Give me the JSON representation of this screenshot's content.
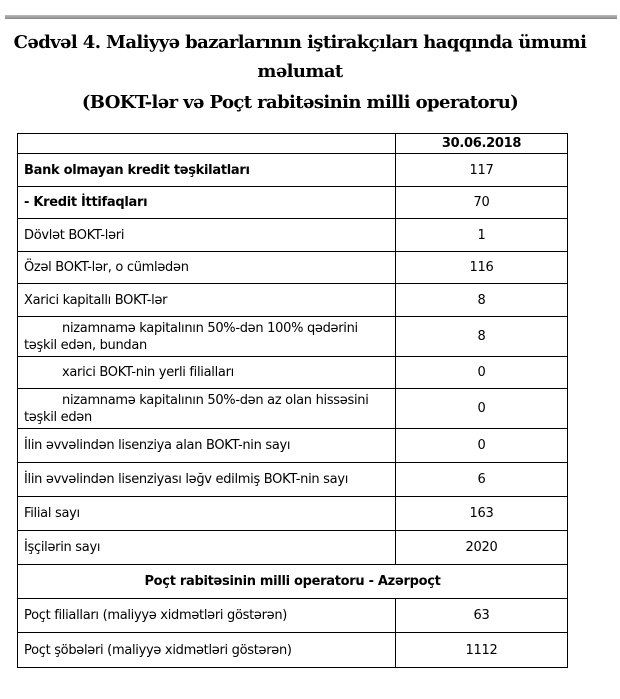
{
  "title": "Cədvəl 4. Maliyyə bazarlarının iştirakçıları haqqında ümumi məlumat",
  "subtitle": "(BOKT-lər və Poçt rabitəsinin milli operatoru)",
  "table": {
    "header": [
      "",
      "30.06.2018"
    ],
    "rows": [
      {
        "label": "Bank olmayan kredit təşkilatları",
        "value": "117"
      },
      {
        "label": " - Kredit İttifaqları",
        "value": "70"
      },
      {
        "label": "Dövlət BOKT-ləri",
        "value": "1"
      },
      {
        "label": "Özəl BOKT-lər, o cümlədən",
        "value": "116"
      },
      {
        "label": "Xarici kapitallı BOKT-lər",
        "value": "8"
      },
      {
        "label": "nizamnamə kapitalının 50%-dən 100% qədərini təşkil edən, bundan",
        "value": "8"
      },
      {
        "label": "xarici BOKT-nin yerli filialları",
        "value": "0"
      },
      {
        "label": "nizamnamə kapitalının 50%-dən az olan hissəsini təşkil edən",
        "value": "0"
      },
      {
        "label": "İlin əvvəlindən lisenziya alan BOKT-nin sayı",
        "value": "0"
      },
      {
        "label": "İlin əvvəlindən lisenziyası ləğv edilmiş BOKT-nin sayı",
        "value": "6"
      },
      {
        "label": "Filial sayı",
        "value": "163"
      },
      {
        "label": "İşçilərin sayı",
        "value": "2020"
      }
    ],
    "section": "Poçt rabitəsinin milli operatoru - Azərpoçt",
    "rows2": [
      {
        "label": "Poçt filialları (maliyyə xidmətləri göstərən)",
        "value": "63"
      },
      {
        "label": "Poçt şöbələri (maliyyə xidmətləri göstərən)",
        "value": "1112"
      }
    ]
  }
}
